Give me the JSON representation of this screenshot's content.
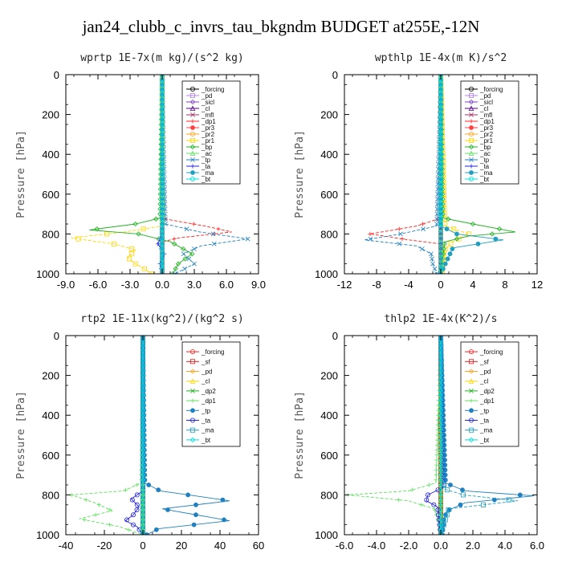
{
  "title": "jan24_clubb_c_invrs_tau_bkgndm  BUDGET at255E,-12N",
  "chart_data": [
    {
      "type": "line",
      "title": "wprtp   1E-7x(m kg)/(s^2 kg)",
      "ylabel": "Pressure [hPa]",
      "xlim": [
        -9,
        9
      ],
      "ylim": [
        1000,
        0
      ],
      "xticks": [
        "-9.0",
        "-6.0",
        "-3.0",
        "0.0",
        "3.0",
        "6.0",
        "9.0"
      ],
      "yticks": [
        "0",
        "200",
        "400",
        "600",
        "800",
        "1000"
      ],
      "legend": "top-right",
      "series": [
        {
          "name": "_forcing",
          "color": "#000000",
          "p": [
            0,
            100,
            200,
            300,
            400,
            500,
            600,
            700,
            800,
            900,
            1000
          ],
          "x": [
            0,
            0,
            0,
            0,
            0,
            0,
            0,
            0,
            0,
            0,
            0
          ]
        },
        {
          "name": "_pd",
          "color": "#b080e0",
          "p": [
            0,
            500,
            1000
          ],
          "x": [
            0,
            0,
            0
          ]
        },
        {
          "name": "_sicl",
          "color": "#8040c0",
          "p": [
            0,
            500,
            1000
          ],
          "x": [
            0,
            0,
            0
          ]
        },
        {
          "name": "_cl",
          "color": "#500080",
          "p": [
            0,
            500,
            1000
          ],
          "x": [
            0,
            0,
            0
          ]
        },
        {
          "name": "_mfl",
          "color": "#a03060",
          "p": [
            0,
            500,
            1000
          ],
          "x": [
            0,
            0,
            0
          ]
        },
        {
          "name": "_dp1",
          "color": "#ff2020",
          "p": [
            0,
            700,
            725,
            760,
            790,
            820,
            840,
            1000
          ],
          "x": [
            0,
            0,
            0.3,
            4,
            6.5,
            1.5,
            0,
            0
          ]
        },
        {
          "name": "_pr3",
          "color": "#ff4040",
          "p": [
            0,
            1000
          ],
          "x": [
            0,
            0
          ]
        },
        {
          "name": "_pr2",
          "color": "#ffa020",
          "p": [
            0,
            1000
          ],
          "x": [
            0,
            0
          ]
        },
        {
          "name": "_pr1",
          "color": "#ffd700",
          "p": [
            0,
            760,
            790,
            820,
            850,
            880,
            920,
            950,
            980,
            1000
          ],
          "x": [
            0,
            0,
            -3.5,
            -8.5,
            -4.5,
            -2.5,
            -3.2,
            -2.5,
            -1.5,
            -1
          ]
        },
        {
          "name": "_bp",
          "color": "#20b020",
          "p": [
            0,
            720,
            750,
            780,
            800,
            840,
            900,
            950,
            1000
          ],
          "x": [
            0,
            -0.2,
            -2.5,
            -6.8,
            -2.2,
            0.8,
            2.8,
            1.5,
            1
          ]
        },
        {
          "name": "_ac",
          "color": "#60e060",
          "p": [
            0,
            1000
          ],
          "x": [
            0,
            0
          ]
        },
        {
          "name": "_tp",
          "color": "#2080c0",
          "p": [
            0,
            750,
            790,
            825,
            860,
            900,
            950,
            1000
          ],
          "x": [
            0,
            0.3,
            3.5,
            8,
            3.6,
            2,
            3,
            1.2
          ]
        },
        {
          "name": "_ta",
          "color": "#2020e0",
          "p": [
            0,
            800,
            850,
            900,
            950,
            1000
          ],
          "x": [
            0,
            0,
            -0.4,
            0.2,
            -0.2,
            0
          ]
        },
        {
          "name": "_ma",
          "color": "#20a0c0",
          "p": [
            0,
            1000
          ],
          "x": [
            0,
            0
          ]
        },
        {
          "name": "_bt",
          "color": "#00e0e0",
          "p": [
            0,
            1000
          ],
          "x": [
            0,
            0
          ]
        }
      ]
    },
    {
      "type": "line",
      "title": "wpthlp   1E-4x(m K)/s^2",
      "ylabel": "Pressure [hPa]",
      "xlim": [
        -12,
        12
      ],
      "ylim": [
        1000,
        0
      ],
      "xticks": [
        "-12",
        "-8",
        "-4",
        "0",
        "4",
        "8",
        "12"
      ],
      "yticks": [
        "0",
        "200",
        "400",
        "600",
        "800",
        "1000"
      ],
      "legend": "top-right",
      "series": [
        {
          "name": "_forcing",
          "color": "#000000",
          "p": [
            0,
            1000
          ],
          "x": [
            0,
            0
          ]
        },
        {
          "name": "_pd",
          "color": "#b080e0",
          "p": [
            0,
            100,
            200,
            300,
            400,
            500,
            600,
            700,
            800,
            900,
            1000
          ],
          "x": [
            0,
            0,
            0,
            0,
            0,
            0,
            0,
            0,
            0,
            0,
            0
          ]
        },
        {
          "name": "_sicl",
          "color": "#8040c0",
          "p": [
            0,
            1000
          ],
          "x": [
            0,
            0
          ]
        },
        {
          "name": "_cl",
          "color": "#500080",
          "p": [
            0,
            1000
          ],
          "x": [
            0,
            0
          ]
        },
        {
          "name": "_mfl",
          "color": "#a03060",
          "p": [
            0,
            1000
          ],
          "x": [
            0,
            0
          ]
        },
        {
          "name": "_dp1",
          "color": "#ff2020",
          "p": [
            0,
            720,
            760,
            800,
            830,
            850,
            1000
          ],
          "x": [
            0,
            0,
            -3,
            -8.8,
            -4,
            0,
            0
          ]
        },
        {
          "name": "_pr3",
          "color": "#ff4040",
          "p": [
            0,
            1000
          ],
          "x": [
            0,
            0
          ]
        },
        {
          "name": "_pr2",
          "color": "#ffa020",
          "p": [
            0,
            1000
          ],
          "x": [
            0,
            0
          ]
        },
        {
          "name": "_pr1",
          "color": "#ffd700",
          "p": [
            0,
            760,
            800,
            840,
            880,
            920,
            1000
          ],
          "x": [
            0,
            0.5,
            3.5,
            1.5,
            0.5,
            0.3,
            0.2
          ]
        },
        {
          "name": "_bp",
          "color": "#20b020",
          "p": [
            0,
            720,
            750,
            790,
            810,
            840,
            1000
          ],
          "x": [
            0,
            0.3,
            4,
            9.3,
            3.5,
            0.5,
            0
          ]
        },
        {
          "name": "_ac",
          "color": "#60e060",
          "p": [
            0,
            1000
          ],
          "x": [
            0,
            0
          ]
        },
        {
          "name": "_tp",
          "color": "#2080c0",
          "p": [
            0,
            760,
            800,
            830,
            860,
            900,
            950,
            1000
          ],
          "x": [
            0,
            -0.5,
            -5,
            -9.5,
            -3,
            -1.2,
            -1,
            -0.5
          ]
        },
        {
          "name": "_ta",
          "color": "#2020e0",
          "p": [
            0,
            1000
          ],
          "x": [
            0,
            0
          ]
        },
        {
          "name": "_ma",
          "color": "#20a0c0",
          "p": [
            0,
            760,
            800,
            830,
            870,
            1000
          ],
          "x": [
            0,
            0,
            2,
            7.8,
            1.5,
            0
          ]
        },
        {
          "name": "_bt",
          "color": "#00e0e0",
          "p": [
            0,
            1000
          ],
          "x": [
            0,
            0
          ]
        }
      ]
    },
    {
      "type": "line",
      "title": "rtp2   1E-11x(kg^2)/(kg^2 s)",
      "ylabel": "Pressure [hPa]",
      "xlim": [
        -40,
        60
      ],
      "ylim": [
        1000,
        0
      ],
      "xticks": [
        "-40",
        "-20",
        "0",
        "20",
        "40",
        "60"
      ],
      "yticks": [
        "0",
        "200",
        "400",
        "600",
        "800",
        "1000"
      ],
      "legend": "top-right",
      "series": [
        {
          "name": "_forcing",
          "color": "#ff2020",
          "p": [
            0,
            1000
          ],
          "x": [
            0,
            0
          ]
        },
        {
          "name": "_sf",
          "color": "#e02020",
          "p": [
            0,
            1000
          ],
          "x": [
            0,
            0
          ]
        },
        {
          "name": "_pd",
          "color": "#ffa020",
          "p": [
            0,
            1000
          ],
          "x": [
            0,
            0
          ]
        },
        {
          "name": "_cl",
          "color": "#ffd700",
          "p": [
            0,
            100,
            200,
            300,
            400,
            500,
            600,
            700,
            800,
            900,
            1000
          ],
          "x": [
            0,
            0,
            0,
            0,
            0,
            0,
            0,
            0,
            0,
            0,
            0
          ]
        },
        {
          "name": "_dp2",
          "color": "#20b020",
          "p": [
            0,
            1000
          ],
          "x": [
            0,
            0
          ]
        },
        {
          "name": "_dp1",
          "color": "#60e060",
          "p": [
            0,
            740,
            780,
            800,
            840,
            880,
            920,
            960,
            1000
          ],
          "x": [
            0,
            -1,
            -10,
            -37,
            -25,
            -16,
            -33,
            -12,
            0
          ]
        },
        {
          "name": "_tp",
          "color": "#2080c0",
          "p": [
            0,
            740,
            780,
            830,
            870,
            930,
            970,
            1000
          ],
          "x": [
            0,
            1,
            9,
            45,
            10,
            45,
            8,
            2
          ]
        },
        {
          "name": "_ta",
          "color": "#2020e0",
          "p": [
            0,
            780,
            820,
            860,
            900,
            930,
            960,
            1000
          ],
          "x": [
            0,
            0,
            -6,
            -2,
            -5,
            -9,
            -3,
            0
          ]
        },
        {
          "name": "_ma",
          "color": "#20a0c0",
          "p": [
            0,
            1000
          ],
          "x": [
            0,
            0
          ]
        },
        {
          "name": "_bt",
          "color": "#00e0e0",
          "p": [
            0,
            1000
          ],
          "x": [
            0,
            0
          ]
        }
      ]
    },
    {
      "type": "line",
      "title": "thlp2   1E-4x(K^2)/s",
      "ylabel": "Pressure [hPa]",
      "xlim": [
        -6,
        6
      ],
      "ylim": [
        1000,
        0
      ],
      "xticks": [
        "-6.0",
        "-4.0",
        "-2.0",
        "0.0",
        "2.0",
        "4.0",
        "6.0"
      ],
      "yticks": [
        "0",
        "200",
        "400",
        "600",
        "800",
        "1000"
      ],
      "legend": "top-right",
      "series": [
        {
          "name": "_forcing",
          "color": "#ff2020",
          "p": [
            0,
            1000
          ],
          "x": [
            0,
            0
          ]
        },
        {
          "name": "_sf",
          "color": "#e02020",
          "p": [
            0,
            1000
          ],
          "x": [
            0,
            0
          ]
        },
        {
          "name": "_pd",
          "color": "#ffa020",
          "p": [
            0,
            1000
          ],
          "x": [
            0,
            0
          ]
        },
        {
          "name": "_cl",
          "color": "#ffd700",
          "p": [
            0,
            100,
            200,
            300,
            400,
            500,
            600,
            700,
            800,
            900,
            1000
          ],
          "x": [
            0,
            0,
            0,
            0,
            0,
            0,
            0,
            0,
            0,
            0,
            0
          ]
        },
        {
          "name": "_dp2",
          "color": "#20b020",
          "p": [
            0,
            1000
          ],
          "x": [
            0,
            0
          ]
        },
        {
          "name": "_dp1",
          "color": "#60e060",
          "p": [
            0,
            740,
            780,
            800,
            830,
            870,
            920,
            1000
          ],
          "x": [
            0,
            -0.3,
            -2,
            -5.8,
            -2,
            -0.4,
            -0.2,
            0
          ]
        },
        {
          "name": "_tp",
          "color": "#2080c0",
          "p": [
            0,
            740,
            780,
            805,
            840,
            880,
            920,
            1000
          ],
          "x": [
            0,
            0.3,
            1.5,
            5.8,
            1.5,
            0.4,
            0.2,
            0.1
          ]
        },
        {
          "name": "_ta",
          "color": "#2020e0",
          "p": [
            0,
            760,
            800,
            830,
            860,
            1000
          ],
          "x": [
            0,
            0.2,
            -0.8,
            -0.9,
            -0.2,
            0
          ]
        },
        {
          "name": "_ma",
          "color": "#20a0c0",
          "p": [
            0,
            770,
            800,
            830,
            870,
            1000
          ],
          "x": [
            0,
            0.2,
            1.4,
            4.8,
            0.5,
            0
          ]
        },
        {
          "name": "_bt",
          "color": "#00e0e0",
          "p": [
            0,
            1000
          ],
          "x": [
            0,
            0
          ]
        }
      ]
    }
  ]
}
